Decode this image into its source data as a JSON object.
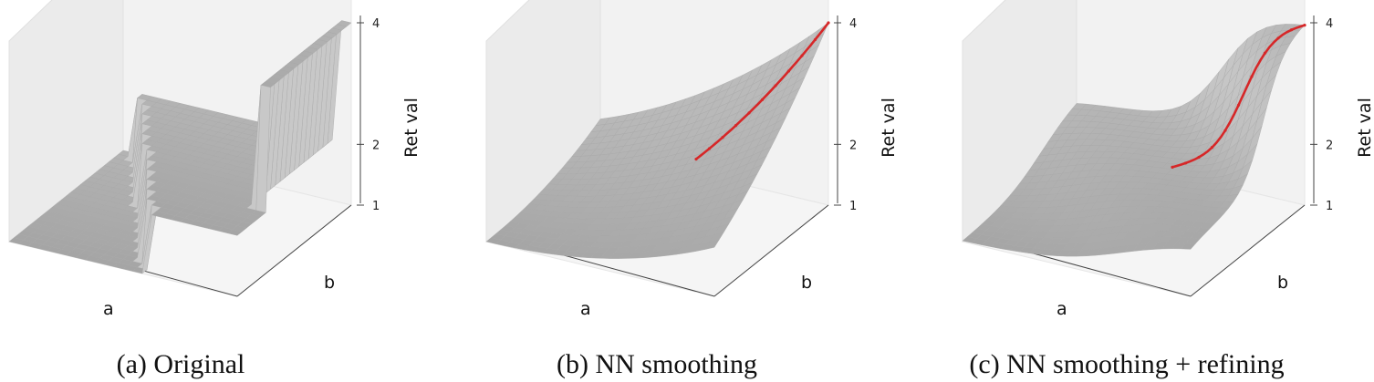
{
  "chart_data": [
    {
      "type": "surface",
      "caption": "(a) Original",
      "xlabel": "a",
      "ylabel": "b",
      "zlabel": "Ret val",
      "zticks": [
        1,
        2,
        4
      ],
      "zlim": [
        1,
        4
      ],
      "surface": "step"
    },
    {
      "type": "surface",
      "caption": "(b) NN smoothing",
      "xlabel": "a",
      "ylabel": "b",
      "zlabel": "Ret val",
      "zticks": [
        1,
        2,
        4
      ],
      "zlim": [
        1,
        4
      ],
      "surface": "smooth",
      "highlight_color": "#d62728"
    },
    {
      "type": "surface",
      "caption": "(c) NN smoothing + refining",
      "xlabel": "a",
      "ylabel": "b",
      "zlabel": "Ret val",
      "zticks": [
        1,
        2,
        4
      ],
      "zlim": [
        1,
        4
      ],
      "surface": "refined",
      "highlight_color": "#d62728"
    }
  ]
}
